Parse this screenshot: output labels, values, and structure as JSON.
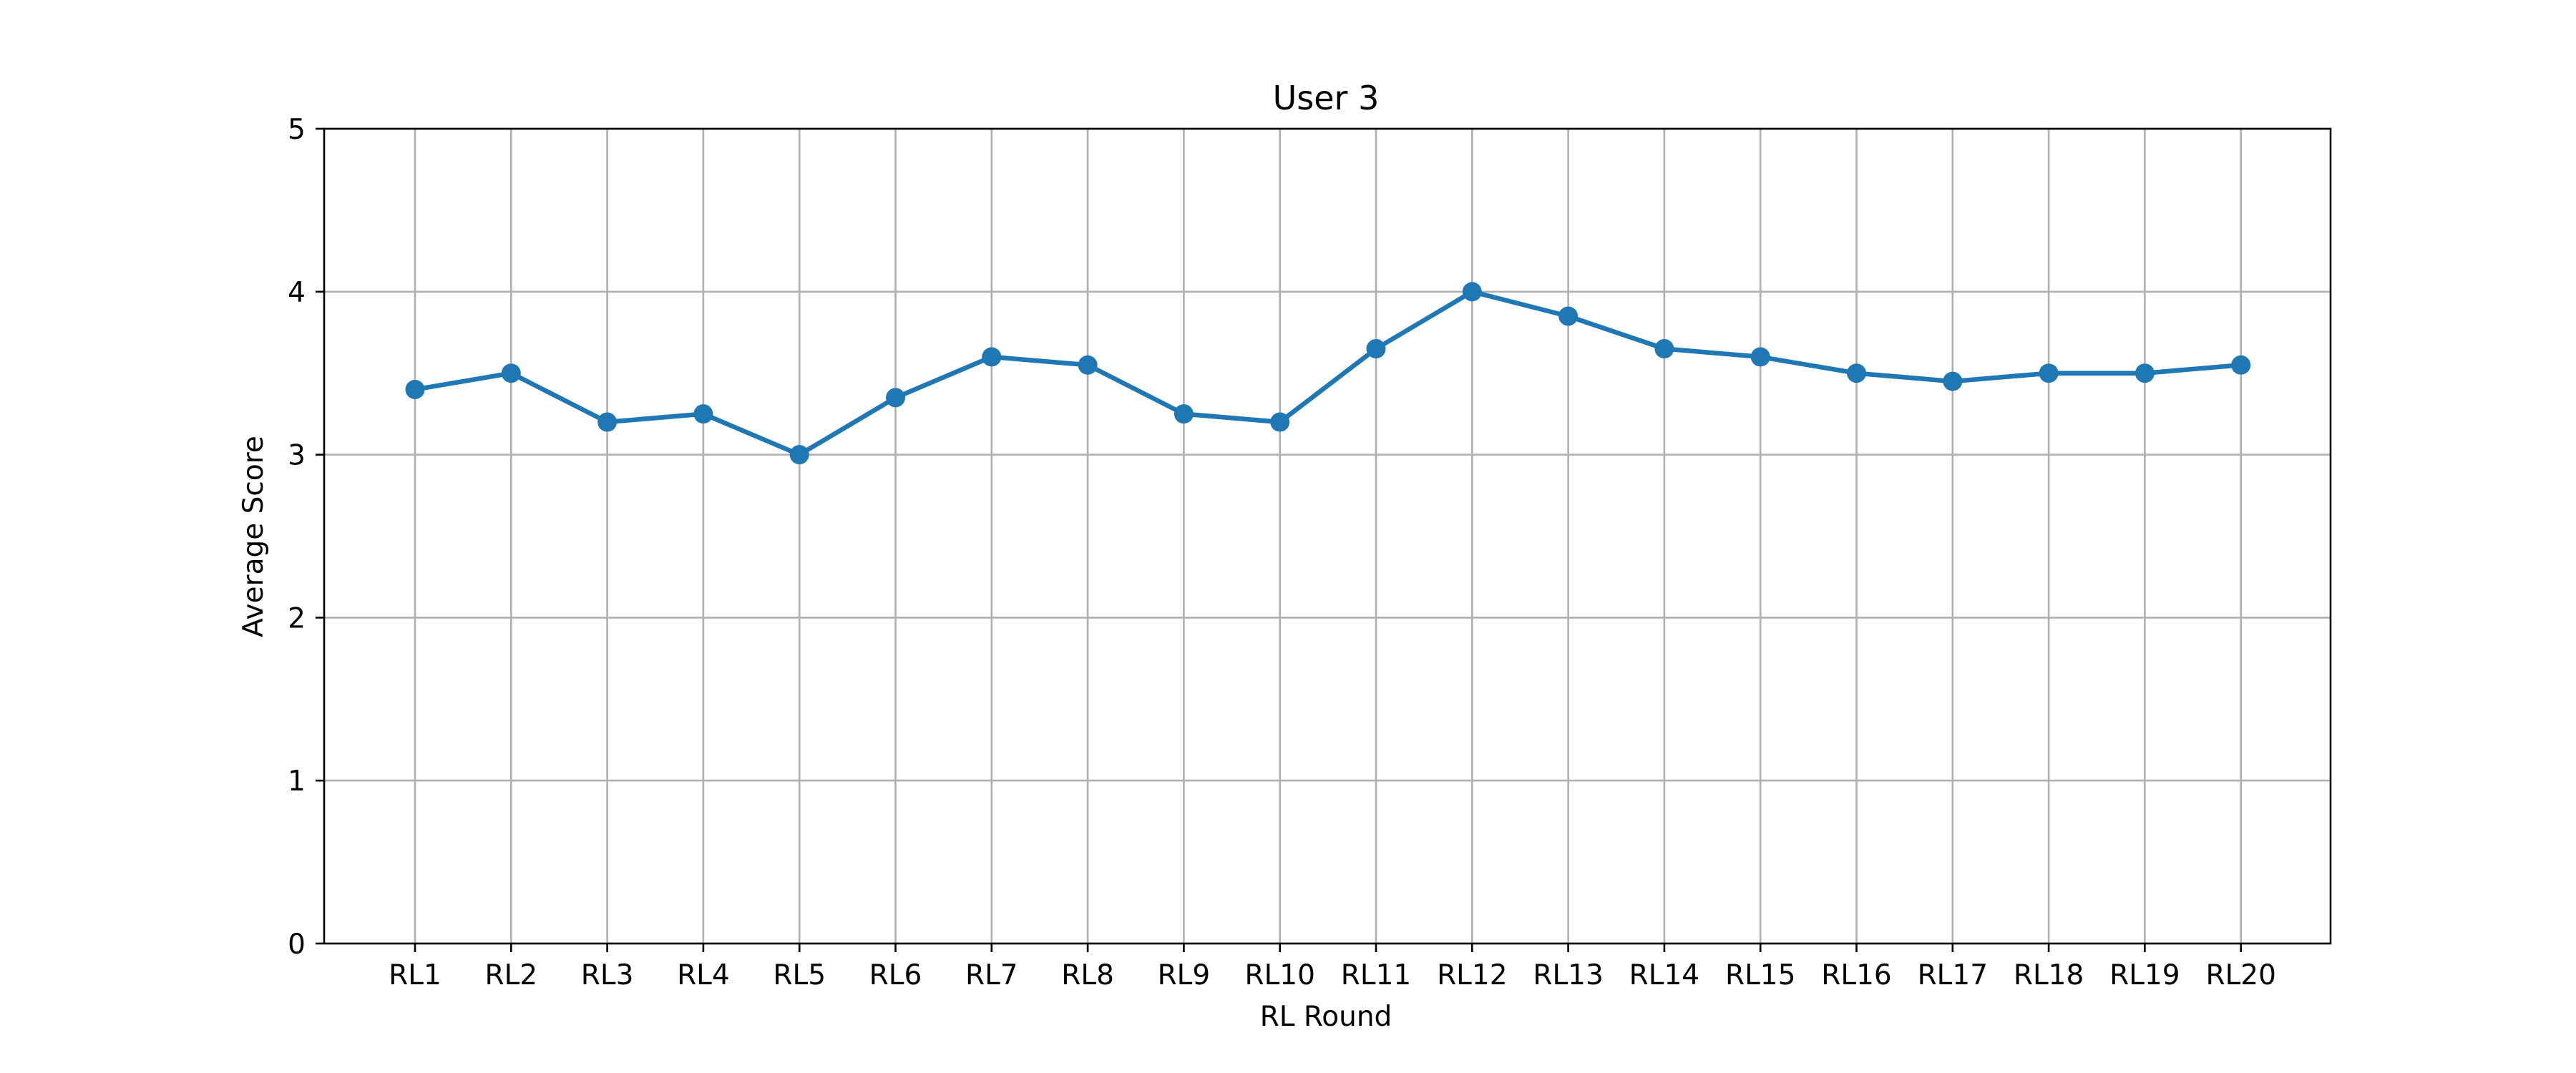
{
  "chart_data": {
    "type": "line",
    "title": "User 3",
    "xlabel": "RL Round",
    "ylabel": "Average Score",
    "categories": [
      "RL1",
      "RL2",
      "RL3",
      "RL4",
      "RL5",
      "RL6",
      "RL7",
      "RL8",
      "RL9",
      "RL10",
      "RL11",
      "RL12",
      "RL13",
      "RL14",
      "RL15",
      "RL16",
      "RL17",
      "RL18",
      "RL19",
      "RL20"
    ],
    "series": [
      {
        "values": [
          3.4,
          3.5,
          3.2,
          3.25,
          3.0,
          3.35,
          3.6,
          3.55,
          3.25,
          3.2,
          3.65,
          4.0,
          3.85,
          3.65,
          3.6,
          3.5,
          3.45,
          3.5,
          3.5,
          3.55
        ],
        "color": "#1f77b4",
        "marker": "circle"
      }
    ],
    "ylim": [
      0,
      5
    ],
    "yticks": [
      0,
      1,
      2,
      3,
      4,
      5
    ],
    "grid": true
  }
}
